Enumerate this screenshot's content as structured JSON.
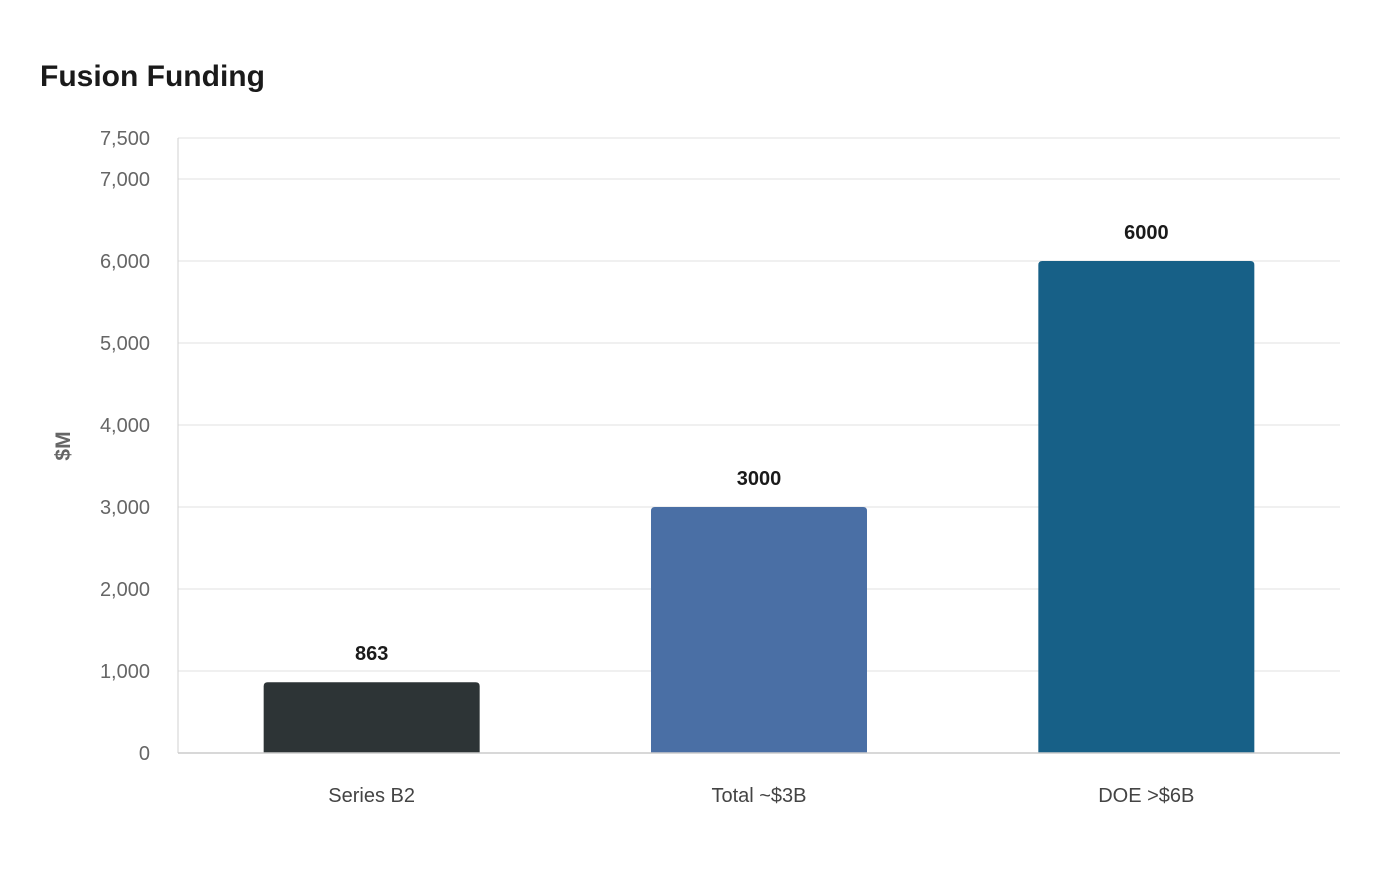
{
  "chart_data": {
    "type": "bar",
    "title": "Fusion Funding",
    "xlabel": "",
    "ylabel": "$M",
    "categories": [
      "Series B2",
      "Total ~$3B",
      "DOE >$6B"
    ],
    "values": [
      863,
      3000,
      6000
    ],
    "data_labels": [
      "863",
      "3000",
      "6000"
    ],
    "colors": [
      "#2d3436",
      "#4a6fa5",
      "#176087"
    ],
    "ylim": [
      0,
      7500
    ],
    "yticks": [
      0,
      1000,
      2000,
      3000,
      4000,
      5000,
      6000,
      7000,
      7500
    ],
    "ytick_labels": [
      "0",
      "1,000",
      "2,000",
      "3,000",
      "4,000",
      "5,000",
      "6,000",
      "7,000",
      "7,500"
    ],
    "grid": true,
    "legend": "none"
  }
}
